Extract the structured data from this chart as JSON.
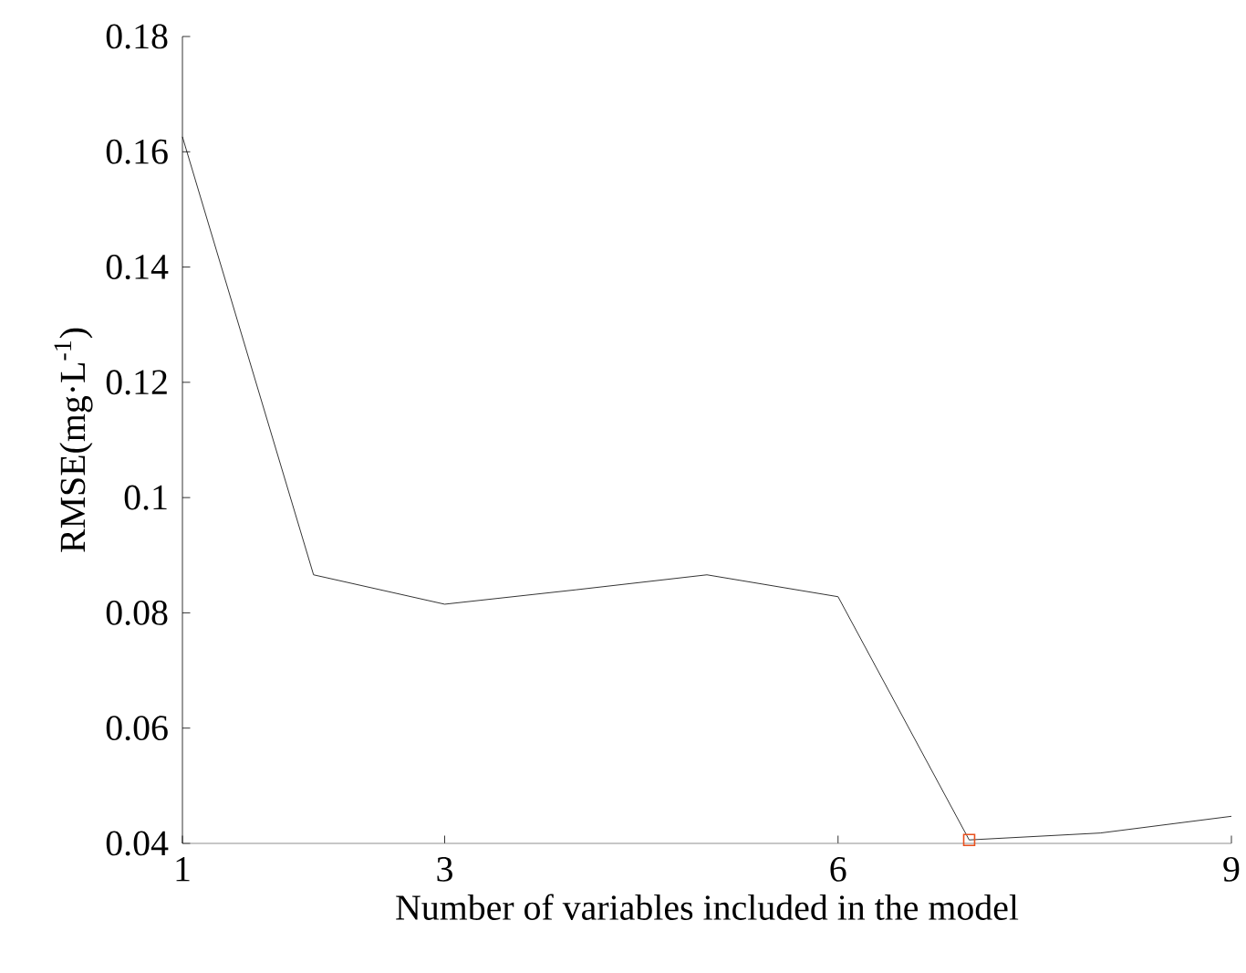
{
  "chart_data": {
    "type": "line",
    "xlabel": "Number of variables included in the model",
    "ylabel": "RMSE(mg·L$^{-1}$)",
    "xlim": [
      1,
      9
    ],
    "ylim": [
      0.04,
      0.18
    ],
    "xticks": [
      1,
      3,
      6,
      9
    ],
    "yticks": [
      0.04,
      0.06,
      0.08,
      0.1,
      0.12,
      0.14,
      0.16,
      0.18
    ],
    "grid": false,
    "series": [
      {
        "color": "#000000",
        "marker": "none",
        "x": [
          1,
          2,
          3,
          4,
          5,
          6,
          7,
          8,
          9
        ],
        "values": [
          0.1626,
          0.0866,
          0.0815,
          0.084,
          0.0866,
          0.0828,
          0.0406,
          0.0418,
          0.0447
        ]
      },
      {
        "type": "scatter",
        "color": "#e8501e",
        "marker": "square",
        "x": [
          7
        ],
        "values": [
          0.0406
        ]
      }
    ]
  }
}
